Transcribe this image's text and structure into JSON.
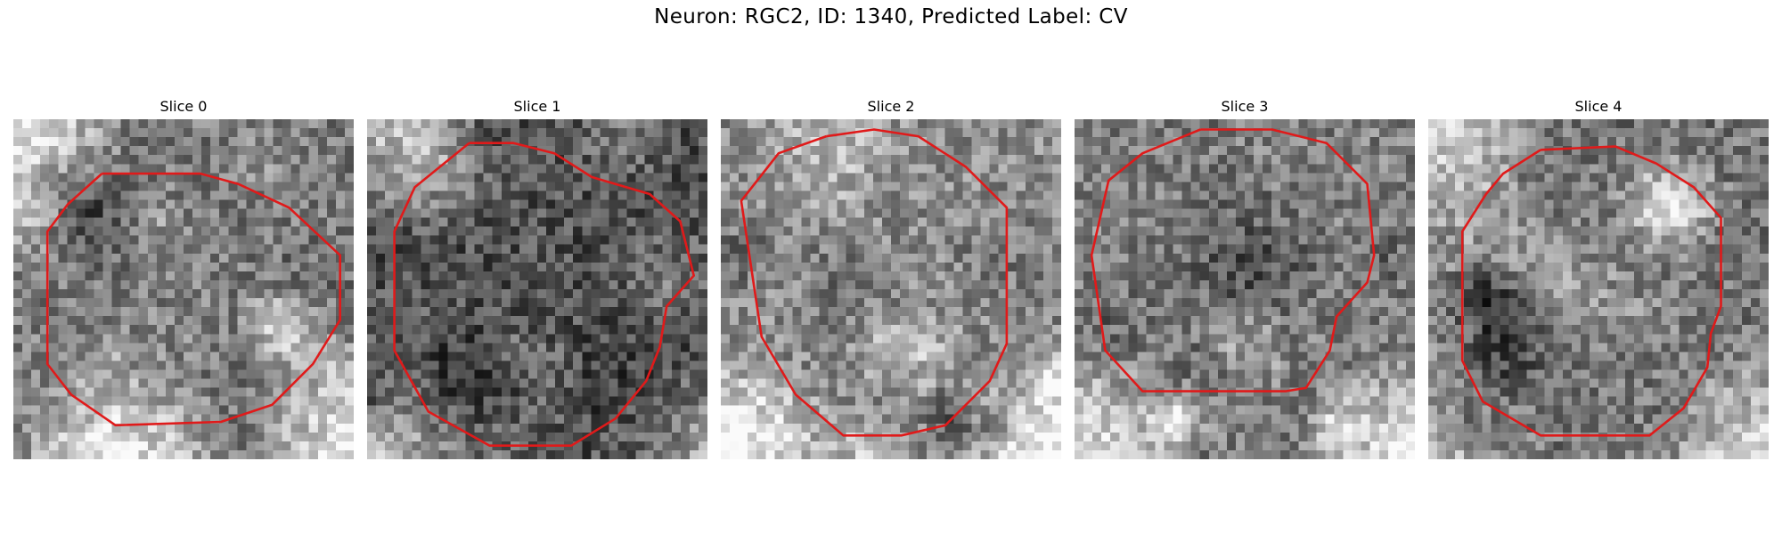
{
  "figure": {
    "title": "Neuron: RGC2, ID: 1340, Predicted Label: CV"
  },
  "panels": [
    {
      "title": "Slice 0",
      "brightness": 0.48,
      "seed": 11,
      "bright_corners": [
        "tl",
        "br",
        "bl-edge"
      ],
      "contour": [
        [
          0.26,
          0.16
        ],
        [
          0.55,
          0.16
        ],
        [
          0.66,
          0.19
        ],
        [
          0.81,
          0.26
        ],
        [
          0.96,
          0.4
        ],
        [
          0.96,
          0.59
        ],
        [
          0.88,
          0.72
        ],
        [
          0.76,
          0.84
        ],
        [
          0.61,
          0.89
        ],
        [
          0.3,
          0.9
        ],
        [
          0.17,
          0.81
        ],
        [
          0.1,
          0.72
        ],
        [
          0.1,
          0.33
        ],
        [
          0.16,
          0.25
        ]
      ]
    },
    {
      "title": "Slice 1",
      "brightness": 0.32,
      "seed": 23,
      "bright_corners": [
        "tl",
        "bl",
        "br"
      ],
      "contour": [
        [
          0.3,
          0.07
        ],
        [
          0.43,
          0.07
        ],
        [
          0.55,
          0.1
        ],
        [
          0.66,
          0.17
        ],
        [
          0.83,
          0.22
        ],
        [
          0.92,
          0.3
        ],
        [
          0.96,
          0.46
        ],
        [
          0.88,
          0.55
        ],
        [
          0.86,
          0.67
        ],
        [
          0.82,
          0.77
        ],
        [
          0.73,
          0.88
        ],
        [
          0.6,
          0.96
        ],
        [
          0.36,
          0.96
        ],
        [
          0.18,
          0.86
        ],
        [
          0.08,
          0.68
        ],
        [
          0.08,
          0.33
        ],
        [
          0.14,
          0.2
        ]
      ]
    },
    {
      "title": "Slice 2",
      "brightness": 0.55,
      "seed": 37,
      "bright_corners": [
        "bl",
        "br"
      ],
      "contour": [
        [
          0.31,
          0.05
        ],
        [
          0.45,
          0.03
        ],
        [
          0.58,
          0.05
        ],
        [
          0.72,
          0.14
        ],
        [
          0.84,
          0.26
        ],
        [
          0.84,
          0.66
        ],
        [
          0.79,
          0.77
        ],
        [
          0.66,
          0.9
        ],
        [
          0.53,
          0.93
        ],
        [
          0.36,
          0.93
        ],
        [
          0.22,
          0.81
        ],
        [
          0.12,
          0.64
        ],
        [
          0.06,
          0.24
        ],
        [
          0.17,
          0.1
        ]
      ]
    },
    {
      "title": "Slice 3",
      "brightness": 0.5,
      "seed": 51,
      "bright_corners": [
        "br",
        "bl"
      ],
      "contour": [
        [
          0.37,
          0.03
        ],
        [
          0.58,
          0.03
        ],
        [
          0.74,
          0.07
        ],
        [
          0.86,
          0.19
        ],
        [
          0.88,
          0.4
        ],
        [
          0.86,
          0.48
        ],
        [
          0.77,
          0.58
        ],
        [
          0.75,
          0.68
        ],
        [
          0.68,
          0.79
        ],
        [
          0.62,
          0.8
        ],
        [
          0.2,
          0.8
        ],
        [
          0.09,
          0.68
        ],
        [
          0.05,
          0.4
        ],
        [
          0.1,
          0.18
        ],
        [
          0.2,
          0.1
        ]
      ]
    },
    {
      "title": "Slice 4",
      "brightness": 0.46,
      "seed": 64,
      "bright_corners": [
        "tl",
        "br",
        "bl"
      ],
      "contour": [
        [
          0.33,
          0.09
        ],
        [
          0.55,
          0.08
        ],
        [
          0.67,
          0.13
        ],
        [
          0.78,
          0.2
        ],
        [
          0.86,
          0.29
        ],
        [
          0.86,
          0.55
        ],
        [
          0.83,
          0.63
        ],
        [
          0.82,
          0.73
        ],
        [
          0.75,
          0.85
        ],
        [
          0.65,
          0.93
        ],
        [
          0.33,
          0.93
        ],
        [
          0.16,
          0.83
        ],
        [
          0.1,
          0.71
        ],
        [
          0.1,
          0.33
        ],
        [
          0.17,
          0.22
        ],
        [
          0.22,
          0.16
        ]
      ]
    }
  ],
  "colors": {
    "contour": "#e01a1a",
    "title_text": "#000000",
    "background": "#ffffff"
  }
}
